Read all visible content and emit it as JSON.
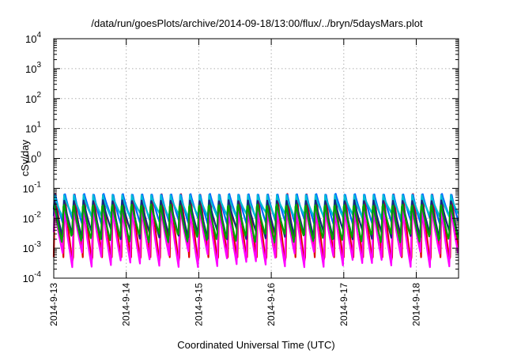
{
  "chart_data": {
    "type": "line",
    "title": "/data/run/goesPlots/archive/2014-09-18/13:00/flux/../bryn/5daysMars.plot",
    "xlabel": "Coordinated Universal Time (UTC)",
    "ylabel": "cSv/day",
    "y_scale": "log",
    "ylim": [
      0.0001,
      10000
    ],
    "xlim": [
      "2014-09-13",
      "2014-09-18T14:00"
    ],
    "x_tick_labels": [
      "2014-9-13",
      "2014-9-14",
      "2014-9-15",
      "2014-9-16",
      "2014-9-17",
      "2014-9-18"
    ],
    "y_tick_labels": [
      {
        "base": "10",
        "exp": "-4"
      },
      {
        "base": "10",
        "exp": "-3"
      },
      {
        "base": "10",
        "exp": "-2"
      },
      {
        "base": "10",
        "exp": "-1"
      },
      {
        "base": "10",
        "exp": "0"
      },
      {
        "base": "10",
        "exp": "1"
      },
      {
        "base": "10",
        "exp": "2"
      },
      {
        "base": "10",
        "exp": "3"
      },
      {
        "base": "10",
        "exp": "4"
      }
    ],
    "grid": true,
    "pattern_note_period_hours": 3.2,
    "series": [
      {
        "color": "#e00000",
        "peak": 0.1,
        "trough": 0.0005
      },
      {
        "color": "#0066ff",
        "peak": 0.085,
        "trough": 0.008
      },
      {
        "color": "#00bcd4",
        "peak": 0.06,
        "trough": 0.012
      },
      {
        "color": "#ff00ff",
        "peak": 0.03,
        "trough": 0.0004
      },
      {
        "color": "#1a237e",
        "peak": 0.05,
        "trough": 0.003
      },
      {
        "color": "#00a000",
        "peak": 0.04,
        "trough": 0.002
      }
    ]
  }
}
